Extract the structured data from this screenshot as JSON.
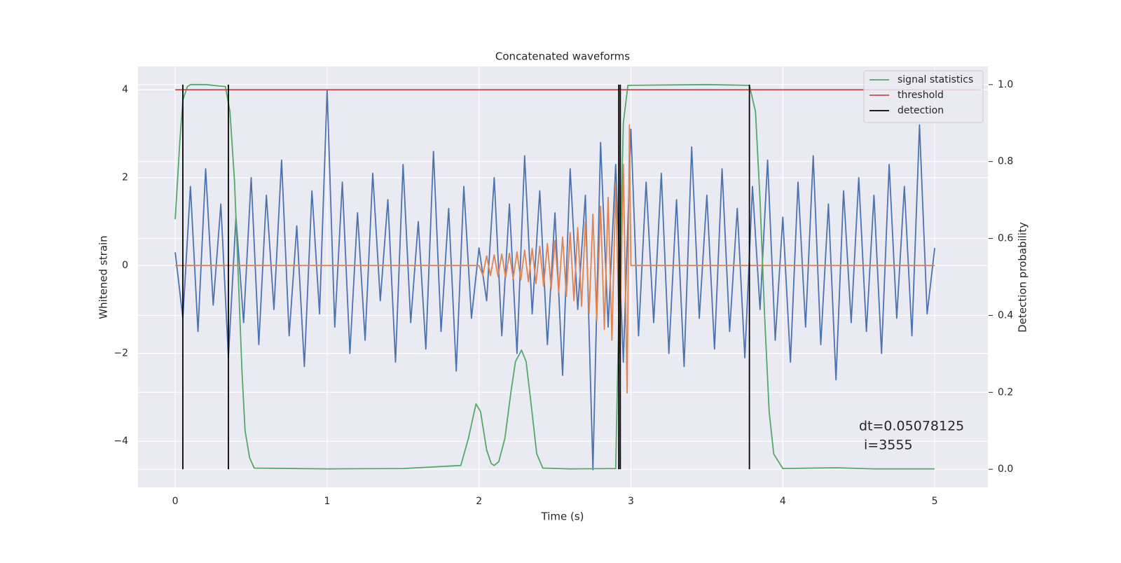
{
  "chart_data": {
    "type": "line",
    "title": "Concatenated waveforms",
    "x_label": "Time (s)",
    "y_label": "Whitened strain",
    "y2_label": "Detection probability",
    "xlim": [
      -0.245,
      5.35
    ],
    "ylim": [
      -5.05,
      4.53
    ],
    "y2lim": [
      -0.047,
      1.047
    ],
    "xticks": [
      0,
      1,
      2,
      3,
      4,
      5
    ],
    "yticks": [
      {
        "value": -4,
        "label": "−4"
      },
      {
        "value": -2,
        "label": "−2"
      },
      0,
      2,
      4
    ],
    "y2ticks": [
      {
        "value": 0,
        "label": "0.0"
      },
      0.2,
      0.4,
      0.6,
      0.8,
      {
        "value": 1,
        "label": "1.0"
      }
    ],
    "grid": true,
    "legend": "upper right",
    "series": [
      {
        "color": "#4c72b0",
        "x": [
          0,
          0.05,
          0.1,
          0.15,
          0.2,
          0.25,
          0.3,
          0.35,
          0.4,
          0.45,
          0.5,
          0.55,
          0.6,
          0.65,
          0.7,
          0.75,
          0.8,
          0.85,
          0.9,
          0.95,
          1,
          1.05,
          1.1,
          1.15,
          1.2,
          1.25,
          1.3,
          1.35,
          1.4,
          1.45,
          1.5,
          1.55,
          1.6,
          1.65,
          1.7,
          1.75,
          1.8,
          1.85,
          1.9,
          1.95,
          2,
          2.05,
          2.1,
          2.15,
          2.2,
          2.25,
          2.3,
          2.35,
          2.4,
          2.45,
          2.5,
          2.55,
          2.6,
          2.65,
          2.7,
          2.75,
          2.8,
          2.85,
          2.9,
          2.95,
          3,
          3.05,
          3.1,
          3.15,
          3.2,
          3.25,
          3.3,
          3.35,
          3.4,
          3.45,
          3.5,
          3.55,
          3.6,
          3.65,
          3.7,
          3.75,
          3.8,
          3.85,
          3.9,
          3.95,
          4,
          4.05,
          4.1,
          4.15,
          4.2,
          4.25,
          4.3,
          4.35,
          4.4,
          4.45,
          4.5,
          4.55,
          4.6,
          4.65,
          4.7,
          4.75,
          4.8,
          4.85,
          4.9,
          4.95,
          5
        ],
        "values": [
          0.3,
          -1.2,
          1.8,
          -1.5,
          2.2,
          -0.9,
          1.4,
          -2.1,
          1.1,
          -1.3,
          2.0,
          -1.8,
          1.6,
          -1.0,
          2.4,
          -1.6,
          0.9,
          -2.3,
          1.7,
          -1.1,
          4.0,
          -1.4,
          1.9,
          -2.0,
          1.2,
          -1.7,
          2.1,
          -0.8,
          1.5,
          -2.2,
          2.3,
          -1.3,
          1.0,
          -1.9,
          2.6,
          -1.5,
          1.3,
          -2.4,
          1.8,
          -1.2,
          0.4,
          -0.8,
          2.0,
          -1.6,
          1.4,
          -2.0,
          2.5,
          -1.1,
          1.7,
          -1.8,
          1.2,
          -2.5,
          2.2,
          -1.0,
          1.6,
          -4.65,
          2.8,
          -1.4,
          2.3,
          -2.2,
          3.1,
          -1.6,
          1.9,
          -1.3,
          2.1,
          -2.0,
          1.5,
          -2.3,
          2.7,
          -1.2,
          1.6,
          -1.9,
          2.2,
          -1.5,
          1.3,
          -2.1,
          1.8,
          -1.0,
          2.4,
          -1.7,
          1.1,
          -2.2,
          1.9,
          -1.4,
          2.5,
          -1.8,
          1.4,
          -2.6,
          1.7,
          -1.3,
          2.0,
          -1.5,
          1.6,
          -2.0,
          2.3,
          -1.2,
          1.8,
          -1.6,
          3.2,
          -1.1,
          0.4
        ]
      },
      {
        "color": "#dd8452",
        "x": [
          0,
          2,
          2.025,
          2.05,
          2.075,
          2.1,
          2.125,
          2.15,
          2.175,
          2.2,
          2.225,
          2.25,
          2.275,
          2.3,
          2.325,
          2.35,
          2.375,
          2.4,
          2.425,
          2.45,
          2.475,
          2.5,
          2.525,
          2.55,
          2.575,
          2.6,
          2.625,
          2.65,
          2.675,
          2.7,
          2.725,
          2.75,
          2.775,
          2.8,
          2.825,
          2.85,
          2.875,
          2.9,
          2.925,
          2.95,
          2.975,
          2.99,
          3,
          5
        ],
        "values": [
          0,
          0,
          -0.22,
          0.22,
          -0.23,
          0.24,
          -0.25,
          0.26,
          -0.27,
          0.28,
          -0.3,
          0.31,
          -0.33,
          0.35,
          -0.37,
          0.39,
          -0.41,
          0.44,
          -0.47,
          0.5,
          -0.53,
          0.57,
          -0.61,
          0.65,
          -0.7,
          0.75,
          -0.8,
          0.86,
          -0.93,
          1.0,
          -1.08,
          1.17,
          -1.25,
          1.35,
          -1.45,
          1.55,
          -1.7,
          1.85,
          -2.0,
          2.3,
          -2.9,
          3.2,
          0,
          0
        ]
      },
      {
        "name": "signal statistics",
        "color": "#55a868",
        "axis": "y2",
        "x": [
          0,
          0.03,
          0.05,
          0.08,
          0.1,
          0.2,
          0.33,
          0.36,
          0.39,
          0.42,
          0.44,
          0.46,
          0.49,
          0.52,
          1.0,
          1.5,
          1.88,
          1.93,
          1.98,
          2.01,
          2.05,
          2.08,
          2.1,
          2.13,
          2.17,
          2.21,
          2.24,
          2.28,
          2.31,
          2.34,
          2.38,
          2.42,
          2.6,
          2.9,
          2.92,
          2.95,
          2.98,
          3.5,
          3.78,
          3.82,
          3.85,
          3.88,
          3.91,
          3.94,
          4.0,
          4.35,
          4.6,
          5
        ],
        "values": [
          0.65,
          0.85,
          0.96,
          0.995,
          1.0,
          1.0,
          0.995,
          0.93,
          0.75,
          0.45,
          0.25,
          0.1,
          0.03,
          0.003,
          0.001,
          0.002,
          0.01,
          0.08,
          0.17,
          0.15,
          0.05,
          0.015,
          0.01,
          0.02,
          0.08,
          0.2,
          0.28,
          0.31,
          0.28,
          0.18,
          0.04,
          0.003,
          0.001,
          0.002,
          0.4,
          0.9,
          0.998,
          1.0,
          0.998,
          0.93,
          0.7,
          0.4,
          0.15,
          0.04,
          0.002,
          0.004,
          0.001,
          0.001
        ]
      },
      {
        "name": "threshold",
        "color": "#c44e52",
        "x": [
          0,
          5.3
        ],
        "values": [
          4,
          4
        ]
      },
      {
        "name": "detection",
        "color": "#000000",
        "axis": "y2",
        "kind": "vlines",
        "x": [
          0.05,
          0.35,
          2.92,
          2.93,
          3.78
        ],
        "y_range": [
          0,
          1
        ]
      }
    ],
    "annotation": [
      "dt=0.05078125",
      "i=3555"
    ]
  }
}
